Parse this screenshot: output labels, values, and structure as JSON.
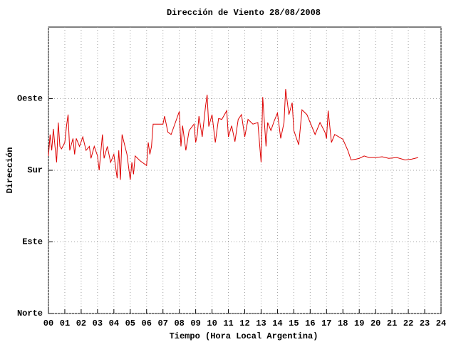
{
  "chart_data": {
    "type": "line",
    "title": "Dirección de Viento 28/08/2008",
    "x_label": "Tiempo (Hora Local Argentina)",
    "y_label": "Dirección",
    "color": "#dd0000",
    "grid": true,
    "xlim": [
      0,
      24
    ],
    "ylim": [
      0,
      360
    ],
    "xticks": [
      {
        "value": 0,
        "label": "00"
      },
      {
        "value": 1,
        "label": "01"
      },
      {
        "value": 2,
        "label": "02"
      },
      {
        "value": 3,
        "label": "03"
      },
      {
        "value": 4,
        "label": "04"
      },
      {
        "value": 5,
        "label": "05"
      },
      {
        "value": 6,
        "label": "06"
      },
      {
        "value": 7,
        "label": "07"
      },
      {
        "value": 8,
        "label": "08"
      },
      {
        "value": 9,
        "label": "09"
      },
      10,
      11,
      12,
      13,
      14,
      15,
      16,
      17,
      18,
      19,
      20,
      21,
      22,
      23,
      24
    ],
    "yticks": [
      {
        "value": 0,
        "label": "Norte"
      },
      {
        "value": 90,
        "label": "Este"
      },
      {
        "value": 180,
        "label": "Sur"
      },
      {
        "value": 270,
        "label": "Oeste"
      }
    ],
    "x": [
      0.0,
      0.1,
      0.2,
      0.3,
      0.4,
      0.5,
      0.6,
      0.7,
      0.8,
      1.0,
      1.1,
      1.2,
      1.3,
      1.5,
      1.6,
      1.7,
      1.9,
      2.1,
      2.3,
      2.5,
      2.6,
      2.8,
      3.0,
      3.1,
      3.3,
      3.4,
      3.6,
      3.8,
      4.0,
      4.1,
      4.2,
      4.3,
      4.4,
      4.5,
      4.8,
      5.0,
      5.1,
      5.2,
      5.3,
      5.6,
      6.0,
      6.1,
      6.2,
      6.3,
      6.4,
      7.0,
      7.1,
      7.3,
      7.5,
      8.0,
      8.1,
      8.2,
      8.4,
      8.6,
      8.9,
      9.0,
      9.1,
      9.2,
      9.4,
      9.6,
      9.7,
      9.8,
      10.0,
      10.2,
      10.4,
      10.6,
      10.9,
      11.0,
      11.2,
      11.4,
      11.6,
      11.8,
      12.0,
      12.2,
      12.5,
      12.8,
      13.0,
      13.1,
      13.3,
      13.4,
      13.6,
      13.8,
      14.0,
      14.2,
      14.4,
      14.5,
      14.7,
      14.9,
      15.0,
      15.3,
      15.5,
      15.8,
      16.0,
      16.3,
      16.6,
      16.9,
      17.0,
      17.1,
      17.3,
      17.5,
      18.0,
      18.3,
      18.5,
      18.8,
      19.0,
      19.3,
      19.6,
      20.0,
      20.4,
      20.8,
      21.3,
      21.8,
      22.2,
      22.6
    ],
    "values": [
      198,
      225,
      205,
      232,
      210,
      190,
      240,
      210,
      207,
      215,
      235,
      250,
      205,
      220,
      200,
      220,
      210,
      222,
      205,
      210,
      195,
      210,
      198,
      180,
      225,
      195,
      210,
      190,
      200,
      185,
      170,
      205,
      168,
      225,
      200,
      168,
      190,
      175,
      198,
      192,
      186,
      215,
      200,
      210,
      238,
      238,
      248,
      228,
      225,
      254,
      210,
      236,
      205,
      230,
      238,
      215,
      225,
      248,
      222,
      260,
      275,
      235,
      250,
      215,
      245,
      244,
      255,
      222,
      236,
      216,
      244,
      250,
      222,
      244,
      238,
      240,
      190,
      272,
      210,
      240,
      230,
      242,
      252,
      220,
      240,
      282,
      250,
      265,
      230,
      212,
      256,
      250,
      240,
      225,
      240,
      228,
      220,
      255,
      215,
      225,
      219,
      205,
      193,
      194,
      195,
      198,
      196,
      196,
      197,
      195,
      196,
      193,
      194,
      196
    ]
  }
}
